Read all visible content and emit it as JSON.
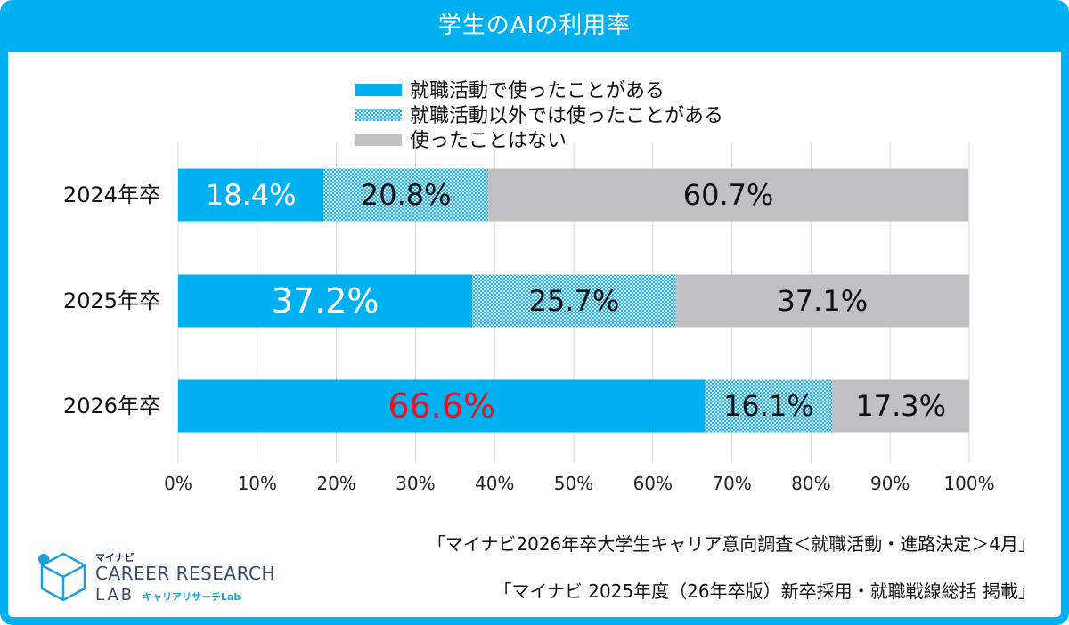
{
  "chart_data": {
    "type": "bar",
    "orientation": "horizontal",
    "stacked": true,
    "title": "学生のAIの利用率",
    "categories": [
      "2024年卒",
      "2025年卒",
      "2026年卒"
    ],
    "series": [
      {
        "name": "就職活動で使ったことがある",
        "values": [
          18.4,
          37.2,
          66.6
        ],
        "labels": [
          "18.4%",
          "37.2%",
          "66.6%"
        ]
      },
      {
        "name": "就職活動以外では使ったことがある",
        "values": [
          20.8,
          25.7,
          16.1
        ],
        "labels": [
          "20.8%",
          "25.7%",
          "16.1%"
        ]
      },
      {
        "name": "使ったことはない",
        "values": [
          60.7,
          37.1,
          17.3
        ],
        "labels": [
          "60.7%",
          "37.1%",
          "17.3%"
        ]
      }
    ],
    "xlim": [
      0,
      100
    ],
    "xticks": [
      "0%",
      "10%",
      "20%",
      "30%",
      "40%",
      "50%",
      "60%",
      "70%",
      "80%",
      "90%",
      "100%"
    ],
    "grid": true,
    "legend": "top-center",
    "highlight": {
      "series": 0,
      "category": 2,
      "color": "#e8141e"
    }
  },
  "colors": {
    "used_for_job": "#00b0f0",
    "used_other": "#9ad7f2",
    "never": "#c0c0c3",
    "title_bar": "#00b0f0",
    "highlight": "#e8141e"
  },
  "sources": [
    "「マイナビ2026年卒大学生キャリア意向調査＜就職活動・進路決定＞4月」",
    "「マイナビ 2025年度（26年卒版）新卒採用・就職戦線総括 掲載」"
  ],
  "logo": {
    "brand": "マイナビ",
    "line1": "CAREER RESEARCH",
    "line2": "LAB",
    "sub": "キャリアリサーチLab"
  }
}
